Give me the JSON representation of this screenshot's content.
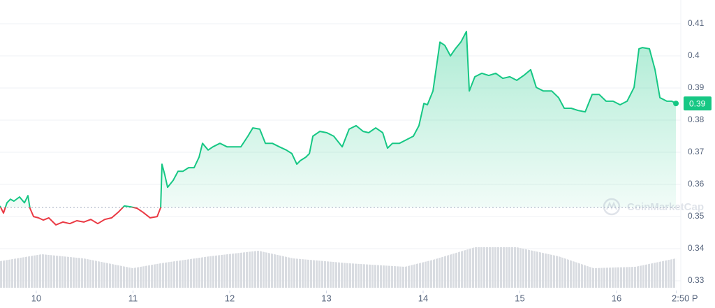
{
  "chart_data": {
    "type": "line",
    "x": [
      9.625,
      9.661,
      9.697,
      9.733,
      9.769,
      9.827,
      9.878,
      9.914,
      9.935,
      9.972,
      10.022,
      10.073,
      10.13,
      10.203,
      10.275,
      10.347,
      10.419,
      10.491,
      10.564,
      10.636,
      10.708,
      10.78,
      10.852,
      10.91,
      10.982,
      11.04,
      11.105,
      11.177,
      11.25,
      11.286,
      11.3,
      11.329,
      11.358,
      11.416,
      11.466,
      11.517,
      11.574,
      11.632,
      11.683,
      11.719,
      11.777,
      11.827,
      11.899,
      11.972,
      12.044,
      12.116,
      12.188,
      12.239,
      12.311,
      12.369,
      12.441,
      12.513,
      12.585,
      12.643,
      12.694,
      12.73,
      12.787,
      12.824,
      12.86,
      12.932,
      13.004,
      13.076,
      13.163,
      13.235,
      13.307,
      13.38,
      13.437,
      13.51,
      13.582,
      13.632,
      13.683,
      13.755,
      13.827,
      13.899,
      13.957,
      14.008,
      14.044,
      14.102,
      14.138,
      14.174,
      14.224,
      14.282,
      14.333,
      14.39,
      14.448,
      14.477,
      14.535,
      14.607,
      14.679,
      14.751,
      14.824,
      14.896,
      14.968,
      15.04,
      15.112,
      15.17,
      15.242,
      15.329,
      15.401,
      15.459,
      15.531,
      15.603,
      15.676,
      15.748,
      15.82,
      15.892,
      15.964,
      16.037,
      16.109,
      16.181,
      16.232,
      16.268,
      16.34,
      16.398,
      16.448,
      16.52,
      16.571,
      16.614
    ],
    "values": [
      0.3533,
      0.3511,
      0.3543,
      0.3554,
      0.3548,
      0.3561,
      0.3543,
      0.3565,
      0.3526,
      0.35,
      0.3496,
      0.3489,
      0.3496,
      0.3474,
      0.3483,
      0.3478,
      0.3487,
      0.3483,
      0.3491,
      0.3478,
      0.3491,
      0.3496,
      0.3515,
      0.3533,
      0.353,
      0.3526,
      0.3513,
      0.3496,
      0.35,
      0.3528,
      0.3663,
      0.363,
      0.3591,
      0.3613,
      0.3641,
      0.3641,
      0.3652,
      0.3652,
      0.3685,
      0.3728,
      0.3707,
      0.3717,
      0.3728,
      0.3717,
      0.3717,
      0.3717,
      0.375,
      0.3776,
      0.3772,
      0.3728,
      0.3728,
      0.3717,
      0.3707,
      0.3696,
      0.3663,
      0.3674,
      0.3685,
      0.3696,
      0.375,
      0.3765,
      0.3761,
      0.375,
      0.3717,
      0.3772,
      0.3783,
      0.3765,
      0.3761,
      0.3776,
      0.3761,
      0.3713,
      0.3728,
      0.3728,
      0.3739,
      0.375,
      0.3783,
      0.3852,
      0.3848,
      0.3891,
      0.3967,
      0.4043,
      0.4033,
      0.4,
      0.4022,
      0.4043,
      0.4076,
      0.3891,
      0.3935,
      0.3946,
      0.3939,
      0.3946,
      0.393,
      0.3935,
      0.3924,
      0.3939,
      0.3957,
      0.3902,
      0.3891,
      0.3891,
      0.387,
      0.3837,
      0.3837,
      0.383,
      0.3826,
      0.388,
      0.388,
      0.3859,
      0.3859,
      0.3848,
      0.3859,
      0.3902,
      0.4022,
      0.4026,
      0.4022,
      0.3957,
      0.387,
      0.3859,
      0.3859,
      0.3852
    ],
    "baseline": 0.3528,
    "up_color": "#16c784",
    "down_color": "#ea3943",
    "volume": {
      "x": [
        9.625,
        10.058,
        10.491,
        10.997,
        11.286,
        11.791,
        12.297,
        12.658,
        13.235,
        13.812,
        14.102,
        14.535,
        14.968,
        15.401,
        15.762,
        16.195,
        16.614
      ],
      "values": [
        38,
        48,
        42,
        28,
        35,
        45,
        53,
        42,
        35,
        30,
        40,
        58,
        58,
        45,
        28,
        30,
        42
      ]
    },
    "xlim": [
      9.625,
      16.628
    ],
    "xticks": [
      10,
      11,
      12,
      13,
      14,
      15,
      16,
      {
        "value": 16.618,
        "label": "2:50 P"
      }
    ],
    "ylim": [
      0.3261,
      0.4174
    ],
    "yticks": [
      0.33,
      0.34,
      0.35,
      0.36,
      0.37,
      0.38,
      0.39,
      0.4,
      0.41
    ],
    "grid": true,
    "current_price_label": "0.39",
    "watermark": "CoinMarketCap"
  }
}
